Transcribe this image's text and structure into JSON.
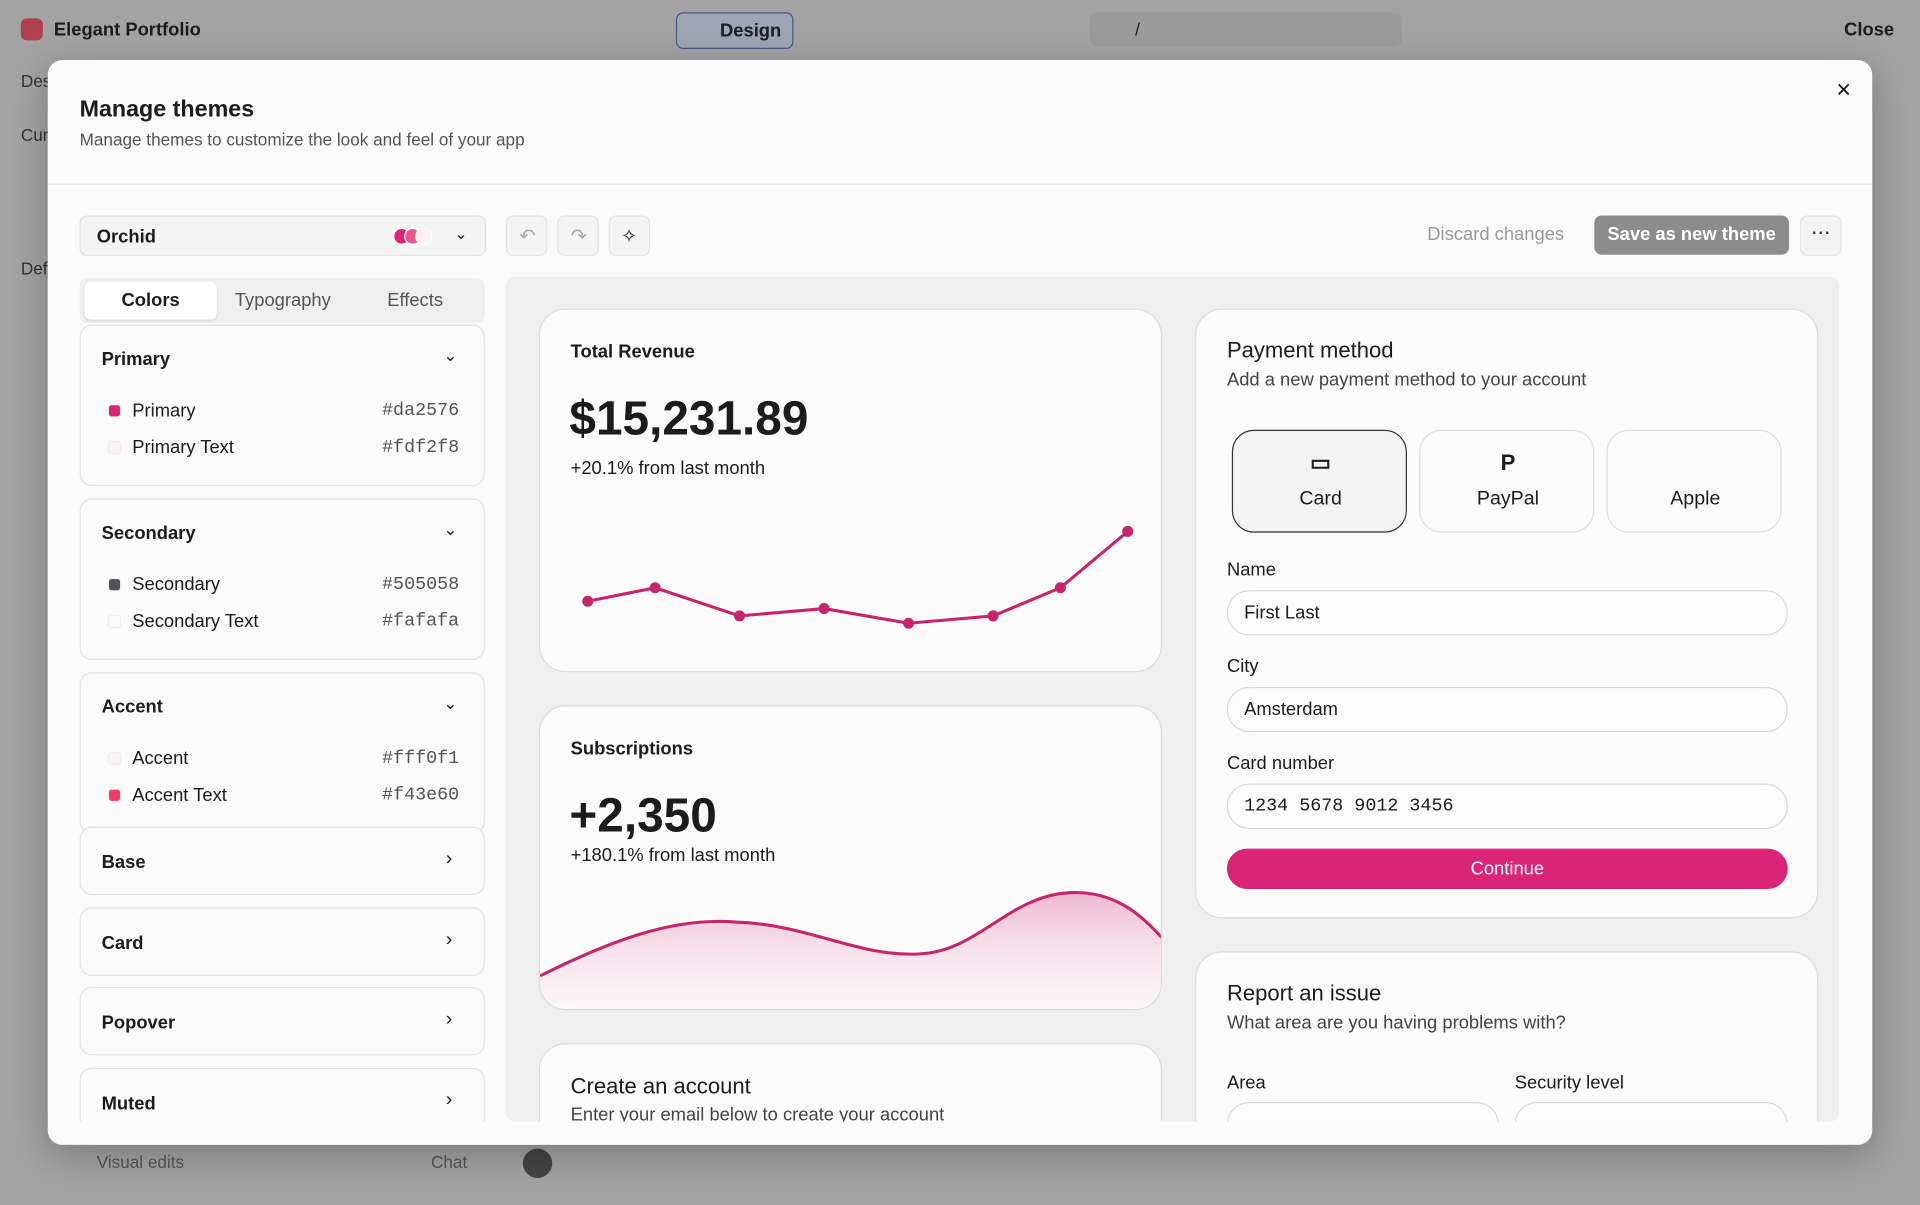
{
  "top_bar": {
    "project": "Elegant Portfolio",
    "mode": "Design",
    "path": "/",
    "close": "Close"
  },
  "background": {
    "fragments": [
      "Des",
      "Cur",
      "Def"
    ],
    "visual_edits": "Visual edits",
    "chat": "Chat"
  },
  "modal": {
    "title": "Manage themes",
    "subtitle": "Manage themes to customize the look and feel of your app",
    "theme": "Orchid",
    "discard": "Discard changes",
    "save": "Save as new theme",
    "tabs": [
      "Colors",
      "Typography",
      "Effects"
    ],
    "groups": [
      {
        "name": "Primary",
        "colors": [
          {
            "label": "Primary",
            "hex": "#da2576"
          },
          {
            "label": "Primary Text",
            "hex": "#fdf2f8"
          }
        ]
      },
      {
        "name": "Secondary",
        "colors": [
          {
            "label": "Secondary",
            "hex": "#505058"
          },
          {
            "label": "Secondary Text",
            "hex": "#fafafa"
          }
        ]
      },
      {
        "name": "Accent",
        "colors": [
          {
            "label": "Accent",
            "hex": "#fff0f1"
          },
          {
            "label": "Accent Text",
            "hex": "#f43e60"
          }
        ]
      }
    ],
    "collapsed_groups": [
      "Base",
      "Card",
      "Popover",
      "Muted"
    ],
    "preview": {
      "revenue": {
        "title": "Total Revenue",
        "value": "$15,231.89",
        "change": "+20.1% from last month"
      },
      "subscriptions": {
        "title": "Subscriptions",
        "value": "+2,350",
        "change": "+180.1% from last month"
      },
      "create_account": {
        "title": "Create an account",
        "subtitle": "Enter your email below to create your account"
      },
      "payment": {
        "title": "Payment method",
        "subtitle": "Add a new payment method to your account",
        "methods": [
          "Card",
          "PayPal",
          "Apple"
        ],
        "fields": [
          {
            "label": "Name",
            "value": "First Last"
          },
          {
            "label": "City",
            "value": "Amsterdam"
          },
          {
            "label": "Card number",
            "value": "1234 5678 9012 3456"
          }
        ],
        "button": "Continue"
      },
      "report": {
        "title": "Report an issue",
        "subtitle": "What area are you having problems with?",
        "fields": [
          "Area",
          "Security level"
        ]
      }
    }
  }
}
